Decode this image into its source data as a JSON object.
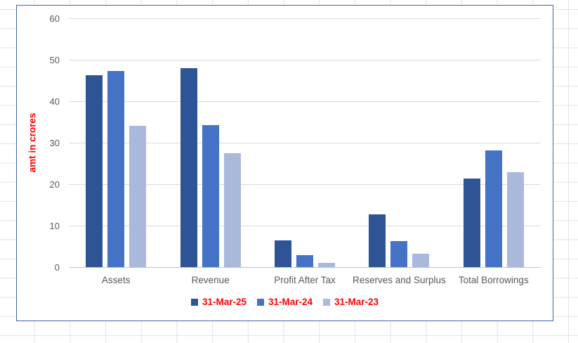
{
  "app": {
    "kind": "spreadsheet-embedded-chart",
    "sheet_gridline_color": "#E2E2E2"
  },
  "chart": {
    "border_color": "#3E66AC",
    "background_color": "#FFFFFF",
    "gridline_color": "#D9D9D9",
    "axis_line_color": "#C3C3C3",
    "tick_label_color": "#595959",
    "category_label_color": "#595959",
    "y_axis_title": "amt in crores",
    "y_axis_title_color": "#FF0000",
    "legend_text_color": "#FF0000"
  },
  "chart_data": {
    "type": "bar",
    "title": "",
    "xlabel": "",
    "ylabel": "amt in crores",
    "categories": [
      "Assets",
      "Revenue",
      "Profit After Tax",
      "Reserves and Surplus",
      "Total Borrowings"
    ],
    "series": [
      {
        "name": "31-Mar-25",
        "color": "#2F5496",
        "values": [
          46.2,
          48.0,
          6.4,
          12.7,
          21.4
        ]
      },
      {
        "name": "31-Mar-24",
        "color": "#4472C4",
        "values": [
          47.3,
          34.2,
          2.9,
          6.3,
          28.2
        ]
      },
      {
        "name": "31-Mar-23",
        "color": "#A9B9DC",
        "values": [
          34.0,
          27.4,
          1.1,
          3.2,
          22.8
        ]
      }
    ],
    "ylim": [
      0,
      60
    ],
    "ytick_interval": 10,
    "ytick_labels": [
      "0",
      "10",
      "20",
      "30",
      "40",
      "50",
      "60"
    ],
    "grid": true,
    "legend_position": "bottom"
  }
}
